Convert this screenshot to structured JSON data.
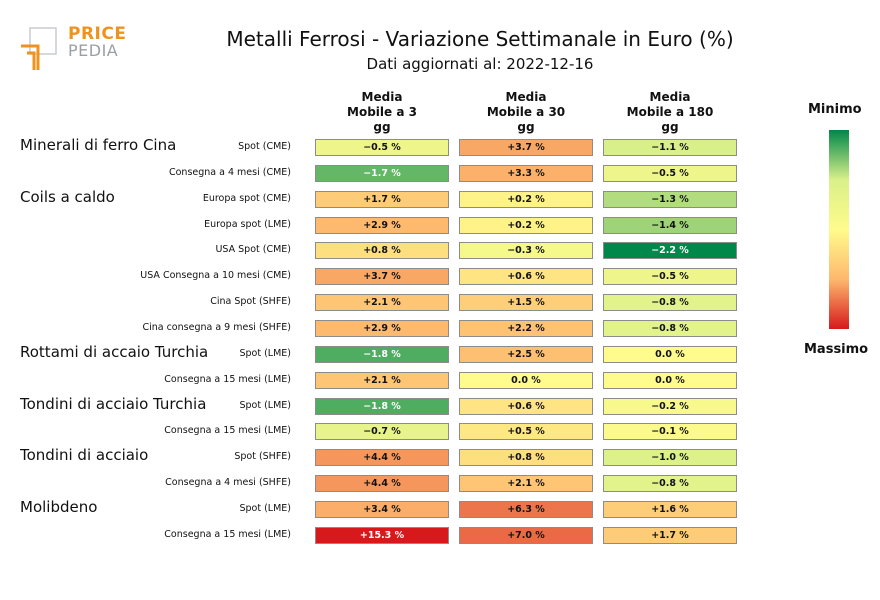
{
  "logo": {
    "line1": "PRICE",
    "line2": "PEDIA"
  },
  "chart_data": {
    "type": "heatmap",
    "title": "Metalli Ferrosi - Variazione Settimanale in Euro (%)",
    "subtitle": "Dati aggiornati al: 2022-12-16",
    "columns": [
      [
        "Media",
        "Mobile a 3",
        "gg"
      ],
      [
        "Media",
        "Mobile a 30",
        "gg"
      ],
      [
        "Media",
        "Mobile a 180",
        "gg"
      ]
    ],
    "colorbar": {
      "min_label": "Minimo",
      "max_label": "Massimo"
    },
    "groups": [
      {
        "name": "Minerali di ferro Cina",
        "row": 0
      },
      {
        "name": "Coils a caldo",
        "row": 2
      },
      {
        "name": "Rottami di accaio Turchia",
        "row": 8
      },
      {
        "name": "Tondini di acciaio Turchia",
        "row": 10
      },
      {
        "name": "Tondini di acciaio",
        "row": 12
      },
      {
        "name": "Molibdeno",
        "row": 14
      }
    ],
    "rows": [
      {
        "label": "Spot (CME)",
        "values": [
          -0.5,
          3.7,
          -1.1
        ],
        "text": [
          "−0.5 %",
          "+3.7 %",
          "−1.1 %"
        ]
      },
      {
        "label": "Consegna a 4 mesi (CME)",
        "values": [
          -1.7,
          3.3,
          -0.5
        ],
        "text": [
          "−1.7 %",
          "+3.3 %",
          "−0.5 %"
        ]
      },
      {
        "label": "Europa spot (CME)",
        "values": [
          1.7,
          0.2,
          -1.3
        ],
        "text": [
          "+1.7 %",
          "+0.2 %",
          "−1.3 %"
        ]
      },
      {
        "label": "Europa spot (LME)",
        "values": [
          2.9,
          0.2,
          -1.4
        ],
        "text": [
          "+2.9 %",
          "+0.2 %",
          "−1.4 %"
        ]
      },
      {
        "label": "USA Spot (CME)",
        "values": [
          0.8,
          -0.3,
          -2.2
        ],
        "text": [
          "+0.8 %",
          "−0.3 %",
          "−2.2 %"
        ]
      },
      {
        "label": "USA Consegna a 10 mesi (CME)",
        "values": [
          3.7,
          0.6,
          -0.5
        ],
        "text": [
          "+3.7 %",
          "+0.6 %",
          "−0.5 %"
        ]
      },
      {
        "label": "Cina Spot (SHFE)",
        "values": [
          2.1,
          1.5,
          -0.8
        ],
        "text": [
          "+2.1 %",
          "+1.5 %",
          "−0.8 %"
        ]
      },
      {
        "label": "Cina consegna a 9 mesi (SHFE)",
        "values": [
          2.9,
          2.2,
          -0.8
        ],
        "text": [
          "+2.9 %",
          "+2.2 %",
          "−0.8 %"
        ]
      },
      {
        "label": "Spot (LME)",
        "values": [
          -1.8,
          2.5,
          0.0
        ],
        "text": [
          "−1.8 %",
          "+2.5 %",
          "0.0 %"
        ]
      },
      {
        "label": "Consegna a 15 mesi (LME)",
        "values": [
          2.1,
          0.0,
          0.0
        ],
        "text": [
          "+2.1 %",
          "0.0 %",
          "0.0 %"
        ]
      },
      {
        "label": "Spot (LME)",
        "values": [
          -1.8,
          0.6,
          -0.2
        ],
        "text": [
          "−1.8 %",
          "+0.6 %",
          "−0.2 %"
        ]
      },
      {
        "label": "Consegna a 15 mesi (LME)",
        "values": [
          -0.7,
          0.5,
          -0.1
        ],
        "text": [
          "−0.7 %",
          "+0.5 %",
          "−0.1 %"
        ]
      },
      {
        "label": "Spot (SHFE)",
        "values": [
          4.4,
          0.8,
          -1.0
        ],
        "text": [
          "+4.4 %",
          "+0.8 %",
          "−1.0 %"
        ]
      },
      {
        "label": "Consegna a 4 mesi (SHFE)",
        "values": [
          4.4,
          2.1,
          -0.8
        ],
        "text": [
          "+4.4 %",
          "+2.1 %",
          "−0.8 %"
        ]
      },
      {
        "label": "Spot (LME)",
        "values": [
          3.4,
          6.3,
          1.6
        ],
        "text": [
          "+3.4 %",
          "+6.3 %",
          "+1.6 %"
        ]
      },
      {
        "label": "Consegna a 15 mesi (LME)",
        "values": [
          15.3,
          7.0,
          1.7
        ],
        "text": [
          "+15.3 %",
          "+7.0 %",
          "+1.7 %"
        ]
      }
    ],
    "colors": {
      "low": "#00874a",
      "mid_low": "#d9f08a",
      "mid": "#fffb8c",
      "mid_high": "#fdb86e",
      "high": "#d7191c"
    }
  }
}
